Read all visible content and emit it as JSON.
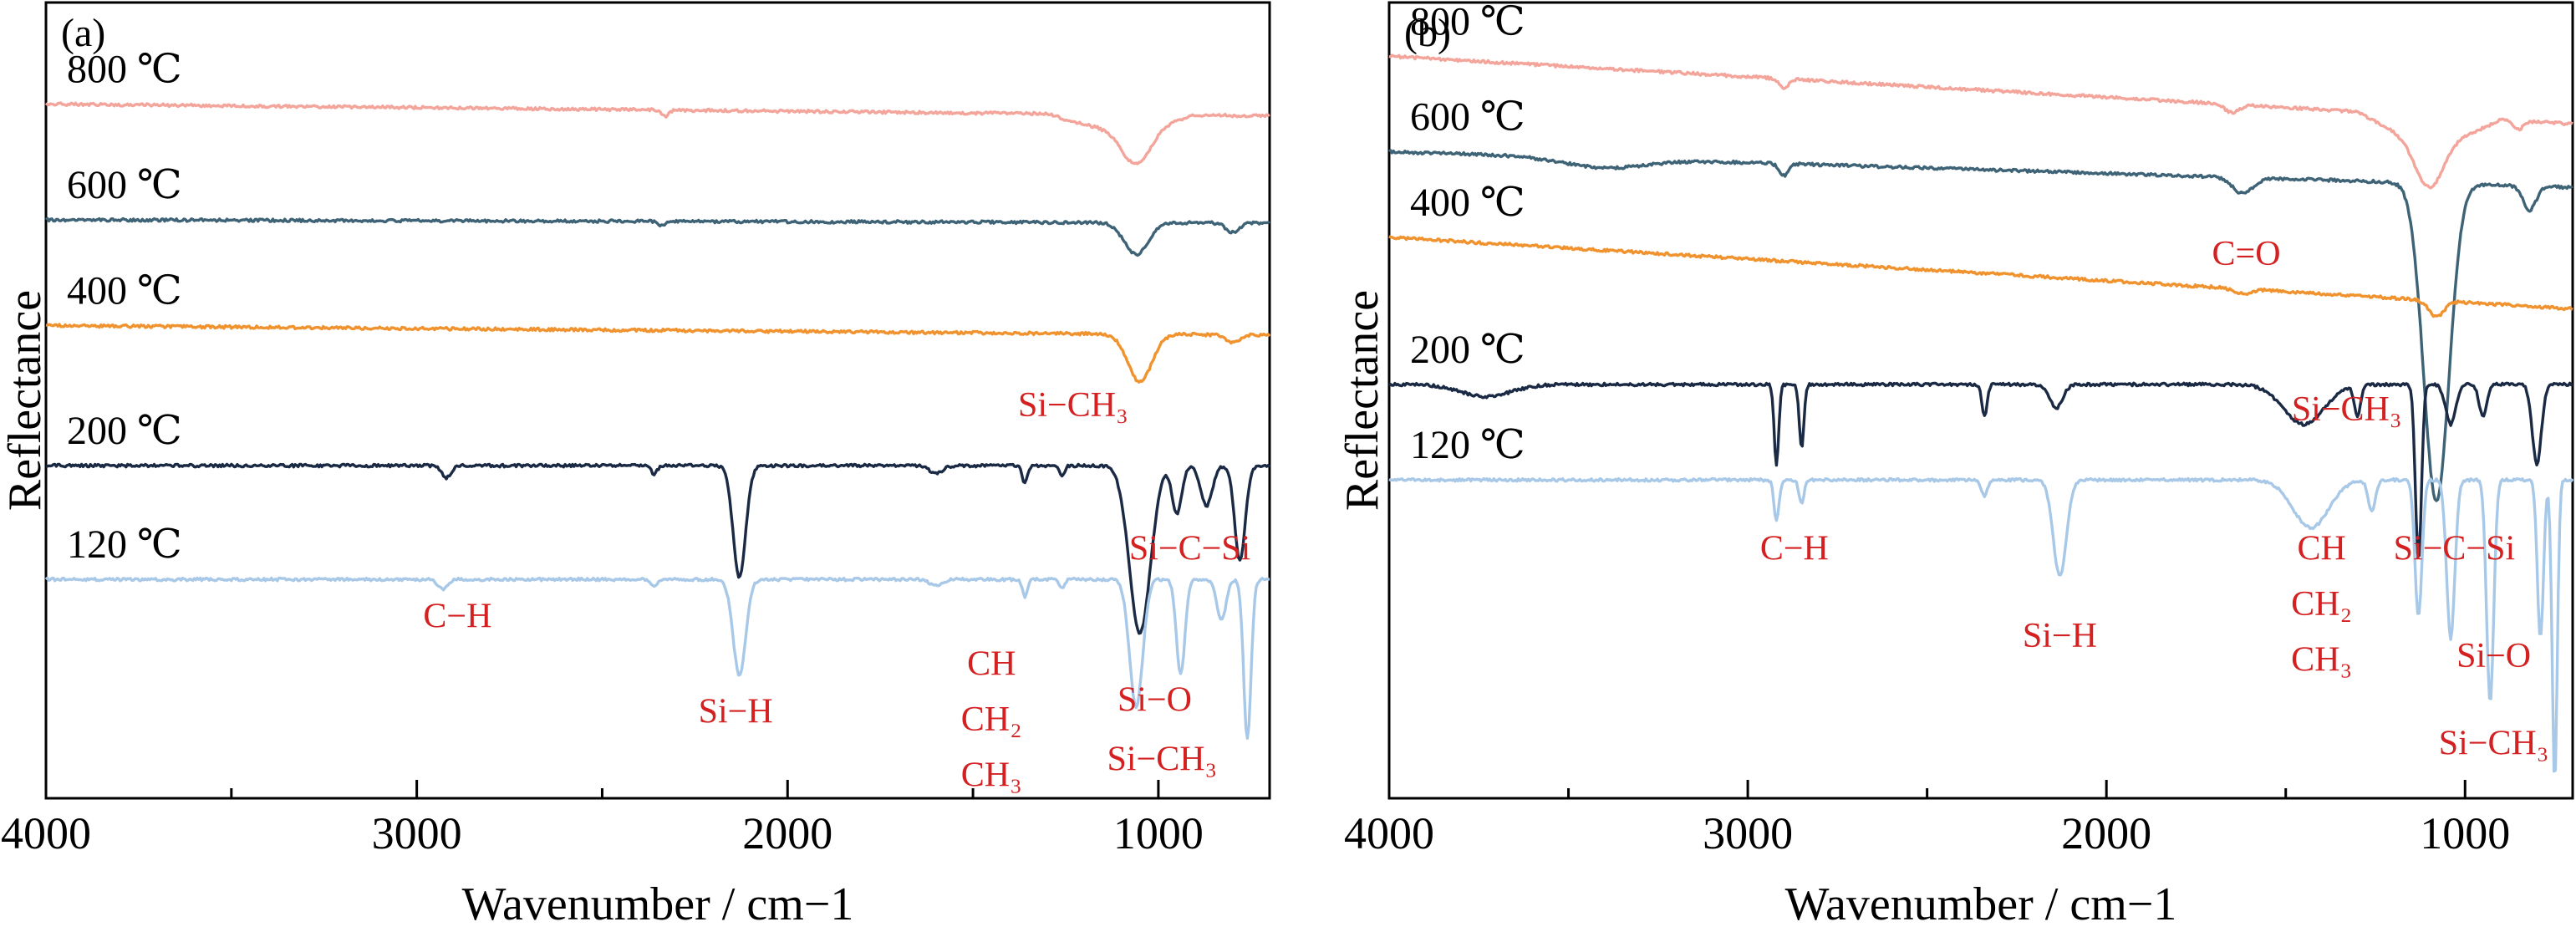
{
  "chart_data": [
    {
      "type": "line",
      "panel_label": "(a)",
      "xlabel": "Wavenumber / cm−1",
      "ylabel": "Reflectance",
      "xlim": [
        4000,
        700
      ],
      "x_reversed": true,
      "xticks": [
        4000,
        3000,
        2000,
        1000
      ],
      "y_ticks_shown": false,
      "grid": false,
      "series": [
        {
          "name": "800 ℃",
          "color": "#f4a59b",
          "baseline": 0.865,
          "tilt": 0.015,
          "drop_base": 0.03,
          "features": [
            {
              "x": 2330,
              "depth": 0.008,
              "width": 14
            },
            {
              "x": 1060,
              "depth": 0.045,
              "width": 55
            }
          ]
        },
        {
          "name": "600 ℃",
          "color": "#3e6376",
          "baseline": 0.725,
          "tilt": 0.004,
          "drop_base": 0.0,
          "features": [
            {
              "x": 2340,
              "depth": 0.006,
              "width": 12
            },
            {
              "x": 1060,
              "depth": 0.04,
              "width": 45
            },
            {
              "x": 800,
              "depth": 0.012,
              "width": 25
            }
          ]
        },
        {
          "name": "400 ℃",
          "color": "#f0922e",
          "baseline": 0.588,
          "tilt": 0.012,
          "drop_base": 0.0,
          "features": [
            {
              "x": 1050,
              "depth": 0.06,
              "width": 45
            },
            {
              "x": 800,
              "depth": 0.01,
              "width": 25
            }
          ]
        },
        {
          "name": "200 ℃",
          "color": "#1b2a44",
          "baseline": 0.418,
          "tilt": 0.0,
          "drop_base": 0.0,
          "features": [
            {
              "x": 2920,
              "depth": 0.015,
              "width": 18
            },
            {
              "x": 2360,
              "depth": 0.01,
              "width": 12
            },
            {
              "x": 2130,
              "depth": 0.14,
              "width": 24
            },
            {
              "x": 1600,
              "depth": 0.01,
              "width": 25
            },
            {
              "x": 1360,
              "depth": 0.022,
              "width": 10
            },
            {
              "x": 1260,
              "depth": 0.012,
              "width": 10
            },
            {
              "x": 1050,
              "depth": 0.21,
              "width": 40
            },
            {
              "x": 950,
              "depth": 0.06,
              "width": 18
            },
            {
              "x": 870,
              "depth": 0.05,
              "width": 22
            },
            {
              "x": 780,
              "depth": 0.12,
              "width": 20
            }
          ]
        },
        {
          "name": "120 ℃",
          "color": "#a8c8e8",
          "baseline": 0.275,
          "tilt": 0.0,
          "drop_base": 0.0,
          "features": [
            {
              "x": 2930,
              "depth": 0.012,
              "width": 18
            },
            {
              "x": 2360,
              "depth": 0.01,
              "width": 12
            },
            {
              "x": 2130,
              "depth": 0.12,
              "width": 24
            },
            {
              "x": 1600,
              "depth": 0.008,
              "width": 25
            },
            {
              "x": 1360,
              "depth": 0.022,
              "width": 10
            },
            {
              "x": 1260,
              "depth": 0.01,
              "width": 10
            },
            {
              "x": 1060,
              "depth": 0.16,
              "width": 25
            },
            {
              "x": 940,
              "depth": 0.12,
              "width": 16
            },
            {
              "x": 830,
              "depth": 0.05,
              "width": 18
            },
            {
              "x": 760,
              "depth": 0.2,
              "width": 14
            }
          ]
        }
      ],
      "annotations": [
        {
          "text": "C−H",
          "x": 2890,
          "y": 0.215
        },
        {
          "text": "Si−H",
          "x": 2140,
          "y": 0.095
        },
        {
          "text": "CH",
          "x": 1450,
          "y": 0.155
        },
        {
          "text": "CH₂",
          "x": 1450,
          "y": 0.085
        },
        {
          "text": "CH₃",
          "x": 1450,
          "y": 0.015
        },
        {
          "text": "Si−CH₃",
          "x": 1230,
          "y": 0.48
        },
        {
          "text": "Si−C−Si",
          "x": 915,
          "y": 0.3
        },
        {
          "text": "Si−O",
          "x": 1010,
          "y": 0.11
        },
        {
          "text": "Si−CH₃",
          "x": 990,
          "y": 0.035
        }
      ]
    },
    {
      "type": "line",
      "panel_label": "(b)",
      "xlabel": "Wavenumber / cm−1",
      "ylabel": "Reflectance",
      "xlim": [
        4000,
        700
      ],
      "x_reversed": true,
      "xticks": [
        4000,
        3000,
        2000,
        1000
      ],
      "y_ticks_shown": false,
      "grid": false,
      "series": [
        {
          "name": "800 ℃",
          "color": "#f4a59b",
          "baseline": 0.89,
          "tilt": 0.085,
          "drop_base": 0.05,
          "features": [
            {
              "x": 2900,
              "depth": 0.012,
              "width": 18
            },
            {
              "x": 1650,
              "depth": 0.01,
              "width": 30
            },
            {
              "x": 1100,
              "depth": 0.06,
              "width": 55
            },
            {
              "x": 850,
              "depth": 0.01,
              "width": 20
            }
          ]
        },
        {
          "name": "600 ℃",
          "color": "#3e6376",
          "baseline": 0.79,
          "tilt": 0.045,
          "drop_base": 0.0,
          "features": [
            {
              "x": 3400,
              "depth": 0.012,
              "width": 160
            },
            {
              "x": 2900,
              "depth": 0.015,
              "width": 18
            },
            {
              "x": 1620,
              "depth": 0.02,
              "width": 40
            },
            {
              "x": 1080,
              "depth": 0.4,
              "width": 50
            },
            {
              "x": 820,
              "depth": 0.03,
              "width": 25
            }
          ]
        },
        {
          "name": "400 ℃",
          "color": "#f0922e",
          "baseline": 0.66,
          "tilt": 0.09,
          "drop_base": 0.0,
          "features": [
            {
              "x": 1620,
              "depth": 0.006,
              "width": 30
            },
            {
              "x": 1080,
              "depth": 0.02,
              "width": 30
            }
          ]
        },
        {
          "name": "200 ℃",
          "color": "#1b2a44",
          "baseline": 0.52,
          "tilt": 0.0,
          "drop_base": 0.0,
          "features": [
            {
              "x": 3730,
              "depth": 0.015,
              "width": 100
            },
            {
              "x": 2920,
              "depth": 0.1,
              "width": 9
            },
            {
              "x": 2850,
              "depth": 0.08,
              "width": 9
            },
            {
              "x": 2340,
              "depth": 0.04,
              "width": 10
            },
            {
              "x": 2140,
              "depth": 0.03,
              "width": 25
            },
            {
              "x": 1450,
              "depth": 0.05,
              "width": 80
            },
            {
              "x": 1300,
              "depth": 0.04,
              "width": 12
            },
            {
              "x": 1130,
              "depth": 0.22,
              "width": 12
            },
            {
              "x": 1040,
              "depth": 0.05,
              "width": 20
            },
            {
              "x": 950,
              "depth": 0.04,
              "width": 15
            },
            {
              "x": 800,
              "depth": 0.1,
              "width": 18
            }
          ]
        },
        {
          "name": "120 ℃",
          "color": "#a8c8e8",
          "baseline": 0.4,
          "tilt": 0.0,
          "drop_base": 0.0,
          "features": [
            {
              "x": 2920,
              "depth": 0.05,
              "width": 10
            },
            {
              "x": 2850,
              "depth": 0.03,
              "width": 10
            },
            {
              "x": 2340,
              "depth": 0.02,
              "width": 12
            },
            {
              "x": 2130,
              "depth": 0.12,
              "width": 26
            },
            {
              "x": 1430,
              "depth": 0.06,
              "width": 70
            },
            {
              "x": 1260,
              "depth": 0.04,
              "width": 14
            },
            {
              "x": 1130,
              "depth": 0.17,
              "width": 14
            },
            {
              "x": 1040,
              "depth": 0.2,
              "width": 16
            },
            {
              "x": 930,
              "depth": 0.28,
              "width": 14
            },
            {
              "x": 790,
              "depth": 0.2,
              "width": 12
            },
            {
              "x": 750,
              "depth": 0.38,
              "width": 10
            }
          ]
        }
      ],
      "annotations": [
        {
          "text": "C−H",
          "x": 2870,
          "y": 0.3
        },
        {
          "text": "Si−H",
          "x": 2130,
          "y": 0.19
        },
        {
          "text": "CH",
          "x": 1400,
          "y": 0.3
        },
        {
          "text": "CH₂",
          "x": 1400,
          "y": 0.23
        },
        {
          "text": "CH₃",
          "x": 1400,
          "y": 0.16
        },
        {
          "text": "C=O",
          "x": 1610,
          "y": 0.67
        },
        {
          "text": "Si−CH₃",
          "x": 1330,
          "y": 0.475
        },
        {
          "text": "Si−C−Si",
          "x": 1030,
          "y": 0.3
        },
        {
          "text": "Si−O",
          "x": 920,
          "y": 0.165
        },
        {
          "text": "Si−CH₃",
          "x": 920,
          "y": 0.055
        }
      ]
    }
  ]
}
